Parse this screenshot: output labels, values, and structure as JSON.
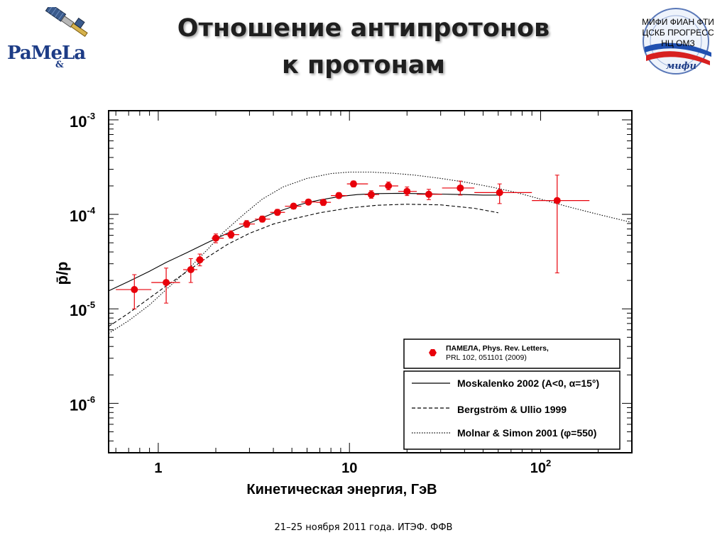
{
  "slide": {
    "title_line1": "Отношение антипротонов",
    "title_line2": "к протонам",
    "footer": "21–25 ноября 2011 года. ИТЭФ. ФФВ",
    "logo_left_text": "PaMeLa",
    "logo_left_amp": "&",
    "org_line1": "МИФИ  ФИАН  ФТИ",
    "org_line2": "ЦСКБ  ПРОГРЕСС",
    "org_line3": "НЦ  ОМЗ",
    "org_logo_text": "мифи"
  },
  "colors": {
    "data_points": "#e8000a",
    "axes": "#000000",
    "title_text": "#1f1f1f"
  },
  "chart_data": {
    "type": "scatter",
    "x_scale": "log",
    "y_scale": "log",
    "xlim": [
      0.55,
      300
    ],
    "ylim": [
      3e-07,
      0.00125
    ],
    "xlabel": "Кинетическая энергия, ГэВ",
    "ylabel": "p̄/p",
    "x_ticks": [
      {
        "value": 1,
        "label": "1"
      },
      {
        "value": 10,
        "label": "10"
      },
      {
        "value": 100,
        "label": "10",
        "exp": "2"
      }
    ],
    "y_ticks": [
      {
        "value": 0.001,
        "label": "10",
        "exp": "-3"
      },
      {
        "value": 0.0001,
        "label": "10",
        "exp": "-4"
      },
      {
        "value": 1e-05,
        "label": "10",
        "exp": "-5"
      },
      {
        "value": 1e-06,
        "label": "10",
        "exp": "-6"
      }
    ],
    "grid": false,
    "legend_data": {
      "title": "ПАМЕЛА, Phys. Rev. Letters,",
      "subtitle": "PRL 102, 051101 (2009)"
    },
    "legend_models": [
      {
        "label": "Moskalenko 2002 (A<0, α=15°)",
        "dash": "solid"
      },
      {
        "label": "Bergström & Ullio 1999",
        "dash": "dashed"
      },
      {
        "label": "Molnar & Simon 2001 (φ=550)",
        "dash": "dotted"
      }
    ],
    "series": [
      {
        "name": "ПАМЕЛА, Phys. Rev. Letters,",
        "kind": "points",
        "points": [
          {
            "x": 0.75,
            "y": 1.6e-05,
            "xlo": 0.6,
            "xhi": 0.92,
            "ylo": 1e-05,
            "yhi": 2.3e-05
          },
          {
            "x": 1.1,
            "y": 1.9e-05,
            "xlo": 0.92,
            "xhi": 1.3,
            "ylo": 1.15e-05,
            "yhi": 2.7e-05
          },
          {
            "x": 1.48,
            "y": 2.6e-05,
            "xlo": 1.35,
            "xhi": 1.6,
            "ylo": 1.9e-05,
            "yhi": 3.4e-05
          },
          {
            "x": 1.65,
            "y": 3.3e-05,
            "xlo": 1.57,
            "xhi": 1.74,
            "ylo": 2.85e-05,
            "yhi": 3.8e-05
          },
          {
            "x": 2.0,
            "y": 5.6e-05,
            "xlo": 1.9,
            "xhi": 2.2,
            "ylo": 5e-05,
            "yhi": 6.2e-05
          },
          {
            "x": 2.4,
            "y": 6.1e-05,
            "xlo": 2.2,
            "xhi": 2.65,
            "ylo": 5.6e-05,
            "yhi": 6.7e-05
          },
          {
            "x": 2.9,
            "y": 7.9e-05,
            "xlo": 2.65,
            "xhi": 3.2,
            "ylo": 7.3e-05,
            "yhi": 8.6e-05
          },
          {
            "x": 3.5,
            "y": 8.9e-05,
            "xlo": 3.2,
            "xhi": 3.85,
            "ylo": 8.3e-05,
            "yhi": 9.6e-05
          },
          {
            "x": 4.2,
            "y": 0.000105,
            "xlo": 3.85,
            "xhi": 4.6,
            "ylo": 9.8e-05,
            "yhi": 0.000113
          },
          {
            "x": 5.1,
            "y": 0.000122,
            "xlo": 4.6,
            "xhi": 5.6,
            "ylo": 0.000114,
            "yhi": 0.00013
          },
          {
            "x": 6.1,
            "y": 0.000135,
            "xlo": 5.6,
            "xhi": 6.7,
            "ylo": 0.000127,
            "yhi": 0.000144
          },
          {
            "x": 7.3,
            "y": 0.000134,
            "xlo": 6.7,
            "xhi": 8.0,
            "ylo": 0.000124,
            "yhi": 0.000144
          },
          {
            "x": 8.8,
            "y": 0.000158,
            "xlo": 8.0,
            "xhi": 9.7,
            "ylo": 0.000148,
            "yhi": 0.00017
          },
          {
            "x": 10.5,
            "y": 0.00021,
            "xlo": 9.7,
            "xhi": 12.5,
            "ylo": 0.000195,
            "yhi": 0.000225
          },
          {
            "x": 13.0,
            "y": 0.000162,
            "xlo": 12.0,
            "xhi": 14.3,
            "ylo": 0.000148,
            "yhi": 0.000178
          },
          {
            "x": 16.0,
            "y": 0.0002,
            "xlo": 14.3,
            "xhi": 18.0,
            "ylo": 0.000182,
            "yhi": 0.00022
          },
          {
            "x": 20.0,
            "y": 0.000175,
            "xlo": 18.0,
            "xhi": 22.5,
            "ylo": 0.000158,
            "yhi": 0.000195
          },
          {
            "x": 26.0,
            "y": 0.000163,
            "xlo": 22.5,
            "xhi": 30.5,
            "ylo": 0.000143,
            "yhi": 0.000184
          },
          {
            "x": 38.0,
            "y": 0.00019,
            "xlo": 30.5,
            "xhi": 45.0,
            "ylo": 0.00016,
            "yhi": 0.000225
          },
          {
            "x": 61.0,
            "y": 0.00017,
            "xlo": 45.0,
            "xhi": 90.0,
            "ylo": 0.00013,
            "yhi": 0.00021
          },
          {
            "x": 122.0,
            "y": 0.00014,
            "xlo": 90.0,
            "xhi": 180.0,
            "ylo": 2.4e-05,
            "yhi": 0.00026
          }
        ]
      },
      {
        "name": "Moskalenko 2002 (A<0, α=15°)",
        "kind": "line",
        "dash": "solid",
        "x": [
          0.55,
          0.7,
          0.9,
          1.1,
          1.4,
          1.8,
          2.3,
          3.0,
          4.0,
          5.0,
          6.0,
          7.0,
          9.0,
          11.0,
          14.0,
          18.0,
          23.0,
          30.0,
          40.0,
          50.0,
          60.0
        ],
        "y": [
          1.55e-05,
          1.95e-05,
          2.5e-05,
          3.1e-05,
          3.9e-05,
          5e-05,
          6.3e-05,
          8.1e-05,
          0.000103,
          0.00012,
          0.000133,
          0.000142,
          0.000155,
          0.000162,
          0.000166,
          0.000167,
          0.000166,
          0.000164,
          0.000162,
          0.00016,
          0.00016
        ]
      },
      {
        "name": "Bergström & Ullio 1999",
        "kind": "line",
        "dash": "dashed",
        "x": [
          0.55,
          0.7,
          0.9,
          1.1,
          1.4,
          1.8,
          2.3,
          3.0,
          4.0,
          5.0,
          7.0,
          10.0,
          14.0,
          20.0,
          30.0,
          45.0,
          60.0
        ],
        "y": [
          6.5e-06,
          9e-06,
          1.3e-05,
          1.75e-05,
          2.45e-05,
          3.5e-05,
          4.8e-05,
          6.3e-05,
          7.9e-05,
          8.9e-05,
          0.000104,
          0.000117,
          0.000125,
          0.000128,
          0.000126,
          0.000116,
          0.000104
        ]
      },
      {
        "name": "Molnar & Simon 2001 (φ=550)",
        "kind": "line",
        "dash": "dotted",
        "x": [
          0.55,
          0.7,
          0.9,
          1.1,
          1.4,
          1.8,
          2.2,
          2.8,
          3.5,
          4.5,
          6.0,
          8.0,
          10.0,
          13.0,
          17.0,
          22.0,
          30.0,
          40.0,
          55.0,
          75.0,
          100.0,
          140.0,
          200.0,
          300.0
        ],
        "y": [
          5.5e-06,
          7.5e-06,
          1.1e-05,
          1.6e-05,
          2.5e-05,
          4.2e-05,
          6.5e-05,
          0.0001,
          0.000145,
          0.000195,
          0.00024,
          0.00027,
          0.00028,
          0.00028,
          0.000272,
          0.00026,
          0.00024,
          0.00022,
          0.000195,
          0.00017,
          0.000145,
          0.00012,
          0.0001,
          8.2e-05
        ]
      }
    ]
  }
}
